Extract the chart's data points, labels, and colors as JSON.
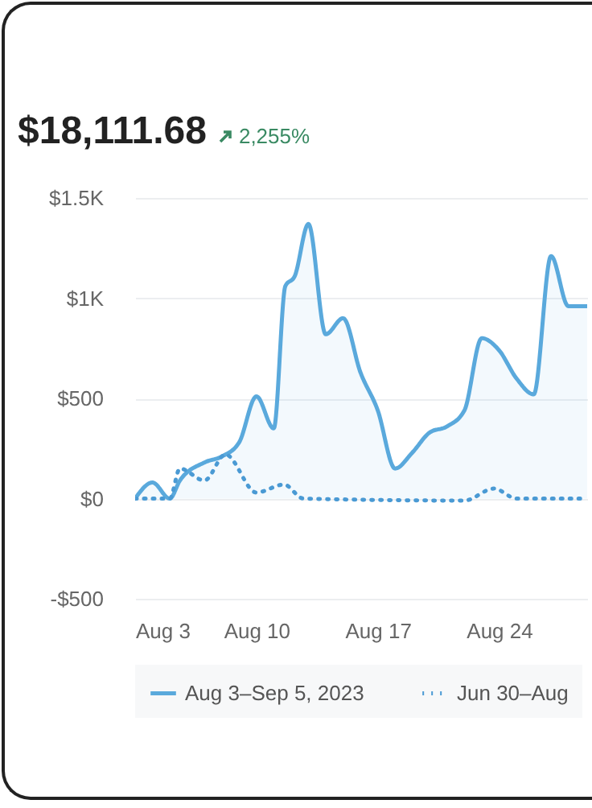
{
  "chart_data": {
    "type": "line",
    "title": "$18,111.68",
    "annotations": [
      "2,255%"
    ],
    "x": [
      "2023-08-03",
      "2023-08-04",
      "2023-08-05",
      "2023-08-05T14:00",
      "2023-08-07",
      "2023-08-08",
      "2023-08-09",
      "2023-08-10",
      "2023-08-11",
      "2023-08-11T16:00",
      "2023-08-12T05:00",
      "2023-08-13",
      "2023-08-14",
      "2023-08-15",
      "2023-08-16",
      "2023-08-17",
      "2023-08-18",
      "2023-08-19",
      "2023-08-20",
      "2023-08-21",
      "2023-08-22",
      "2023-08-23",
      "2023-08-24",
      "2023-08-25",
      "2023-08-26",
      "2023-08-27",
      "2023-08-28",
      "2023-08-29T02:00"
    ],
    "series": [
      {
        "name": "Aug 3–Sep 5, 2023",
        "type": "area",
        "color": "#5aa9dc",
        "line_style": "solid",
        "values": [
          0,
          80,
          0,
          90,
          180,
          210,
          280,
          510,
          350,
          1060,
          1110,
          1370,
          820,
          900,
          630,
          440,
          150,
          230,
          330,
          360,
          440,
          800,
          740,
          600,
          520,
          1210,
          960,
          960
        ]
      },
      {
        "name": "Jun 30–Aug",
        "color": "#4a9ad4",
        "line_style": "dotted",
        "x": [
          "2023-08-03",
          "2023-08-05",
          "2023-08-05T14:00",
          "2023-08-07",
          "2023-08-08T05:00",
          "2023-08-10",
          "2023-08-11T14:00",
          "2023-08-12T17:00",
          "2023-08-22",
          "2023-08-23T17:00",
          "2023-08-25",
          "2023-08-29T02:00"
        ],
        "values": [
          0,
          0,
          150,
          90,
          220,
          30,
          70,
          0,
          -10,
          50,
          0,
          0
        ]
      }
    ],
    "xlim": [
      "2023-08-03",
      "2023-08-29T02:00"
    ],
    "xticks": [
      {
        "value": "2023-08-03",
        "label": "Aug 3"
      },
      {
        "value": "2023-08-10",
        "label": "Aug 10"
      },
      {
        "value": "2023-08-17",
        "label": "Aug 17"
      },
      {
        "value": "2023-08-24",
        "label": "Aug 24"
      }
    ],
    "ylim": [
      -500,
      1500
    ],
    "yticks": [
      {
        "value": -500,
        "label": "-$500"
      },
      {
        "value": 0,
        "label": "$0"
      },
      {
        "value": 500,
        "label": "$500"
      },
      {
        "value": 1000,
        "label": "$1K"
      },
      {
        "value": 1500,
        "label": "$1.5K"
      }
    ],
    "grid": "y",
    "legend": "bottom",
    "marker": "none"
  }
}
